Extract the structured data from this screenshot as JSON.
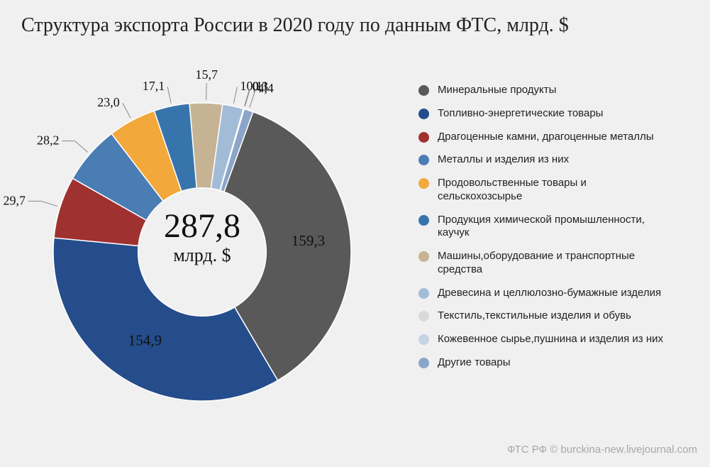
{
  "title": "Структура экспорта России в 2020 году по данным ФТС, млрд. $",
  "total": {
    "value": "287,8",
    "unit": "млрд. $"
  },
  "credit": "ФТС РФ © burckina-new.livejournal.com",
  "chart": {
    "type": "donut",
    "inner_radius_ratio": 0.43,
    "background_color": "#f0f0f0",
    "title_fontsize": 28,
    "label_fontsize": 19,
    "legend_fontsize": 15,
    "start_angle_deg": 20,
    "slices": [
      {
        "label": "Минеральные продукты",
        "value": 159.3,
        "display": "159,3",
        "color": "#595959"
      },
      {
        "label": "Топливно-энергетические товары",
        "value": 154.9,
        "display": "154,9",
        "color": "#254d8c"
      },
      {
        "label": "Драгоценные камни, драгоценные металлы",
        "value": 29.7,
        "display": "29,7",
        "color": "#a03131"
      },
      {
        "label": "Металлы и изделия из них",
        "value": 28.2,
        "display": "28,2",
        "color": "#4a7db3"
      },
      {
        "label": "Продовольственные товары и сельскохозсырье",
        "value": 23.0,
        "display": "23,0",
        "color": "#f2a83b"
      },
      {
        "label": "Продукция химической промышленности, каучук",
        "value": 17.1,
        "display": "17,1",
        "color": "#3874ac"
      },
      {
        "label": "Машины,оборудование и транспортные средства",
        "value": 15.7,
        "display": "15,7",
        "color": "#c6b394"
      },
      {
        "label": "Древесина и целлюлозно-бумажные изделия",
        "value": 10.1,
        "display": "10,1",
        "color": "#a2bcd7"
      },
      {
        "label": "Текстиль,текстильные изделия и обувь",
        "value": 0.3,
        "display": "0,3",
        "color": "#d9d9d9"
      },
      {
        "label": "Кожевенное сырье,пушнина и изделия из них",
        "value": 0.1,
        "display": "0,1",
        "color": "#c4d3e6"
      },
      {
        "label": "Другие товары",
        "value": 4.4,
        "display": "4,4",
        "color": "#8aa5c7"
      }
    ]
  }
}
